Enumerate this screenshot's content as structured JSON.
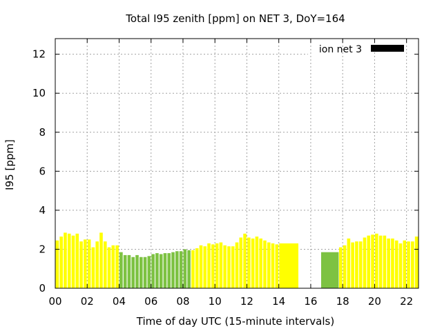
{
  "chart_data": {
    "type": "bar",
    "title": "Total I95 zenith [ppm] on NET 3, DoY=164",
    "xlabel": "Time of day UTC (15-minute intervals)",
    "ylabel": "I95 [ppm]",
    "xlim": [
      0,
      22.75
    ],
    "ylim": [
      0,
      12.8
    ],
    "x_ticks": [
      0,
      2,
      4,
      6,
      8,
      10,
      12,
      14,
      16,
      18,
      20,
      22
    ],
    "x_tick_labels": [
      "00",
      "02",
      "04",
      "06",
      "08",
      "10",
      "12",
      "14",
      "16",
      "18",
      "20",
      "22"
    ],
    "y_ticks": [
      0,
      2,
      4,
      6,
      8,
      10,
      12
    ],
    "y_tick_labels": [
      "0",
      "2",
      "4",
      "6",
      "8",
      "10",
      "12"
    ],
    "grid": true,
    "legend": {
      "label": "ion net 3",
      "position": "top-right",
      "color": "#000000"
    },
    "colors": {
      "yellow": "#ffff00",
      "green": "#7dc242"
    },
    "bar_width_hours": 0.2,
    "series": [
      {
        "values": [
          {
            "x": 0.125,
            "y": 2.45,
            "c": "yellow"
          },
          {
            "x": 0.375,
            "y": 2.65,
            "c": "yellow"
          },
          {
            "x": 0.625,
            "y": 2.85,
            "c": "yellow"
          },
          {
            "x": 0.875,
            "y": 2.8,
            "c": "yellow"
          },
          {
            "x": 1.125,
            "y": 2.7,
            "c": "yellow"
          },
          {
            "x": 1.375,
            "y": 2.8,
            "c": "yellow"
          },
          {
            "x": 1.625,
            "y": 2.4,
            "c": "yellow"
          },
          {
            "x": 1.875,
            "y": 2.5,
            "c": "yellow"
          },
          {
            "x": 2.125,
            "y": 2.5,
            "c": "yellow"
          },
          {
            "x": 2.375,
            "y": 2.1,
            "c": "yellow"
          },
          {
            "x": 2.625,
            "y": 2.4,
            "c": "yellow"
          },
          {
            "x": 2.875,
            "y": 2.85,
            "c": "yellow"
          },
          {
            "x": 3.125,
            "y": 2.4,
            "c": "yellow"
          },
          {
            "x": 3.375,
            "y": 2.1,
            "c": "yellow"
          },
          {
            "x": 3.625,
            "y": 2.2,
            "c": "yellow"
          },
          {
            "x": 3.875,
            "y": 2.2,
            "c": "yellow"
          },
          {
            "x": 4.125,
            "y": 1.85,
            "c": "green"
          },
          {
            "x": 4.375,
            "y": 1.7,
            "c": "green"
          },
          {
            "x": 4.625,
            "y": 1.7,
            "c": "green"
          },
          {
            "x": 4.875,
            "y": 1.6,
            "c": "green"
          },
          {
            "x": 5.125,
            "y": 1.7,
            "c": "green"
          },
          {
            "x": 5.375,
            "y": 1.6,
            "c": "green"
          },
          {
            "x": 5.625,
            "y": 1.6,
            "c": "green"
          },
          {
            "x": 5.875,
            "y": 1.65,
            "c": "green"
          },
          {
            "x": 6.125,
            "y": 1.75,
            "c": "green"
          },
          {
            "x": 6.375,
            "y": 1.8,
            "c": "green"
          },
          {
            "x": 6.625,
            "y": 1.75,
            "c": "green"
          },
          {
            "x": 6.875,
            "y": 1.8,
            "c": "green"
          },
          {
            "x": 7.125,
            "y": 1.8,
            "c": "green"
          },
          {
            "x": 7.375,
            "y": 1.85,
            "c": "green"
          },
          {
            "x": 7.625,
            "y": 1.9,
            "c": "green"
          },
          {
            "x": 7.875,
            "y": 1.9,
            "c": "green"
          },
          {
            "x": 8.125,
            "y": 2.0,
            "c": "green"
          },
          {
            "x": 8.375,
            "y": 1.95,
            "c": "green"
          },
          {
            "x": 8.625,
            "y": 1.95,
            "c": "yellow"
          },
          {
            "x": 8.875,
            "y": 2.05,
            "c": "yellow"
          },
          {
            "x": 9.125,
            "y": 2.2,
            "c": "yellow"
          },
          {
            "x": 9.375,
            "y": 2.15,
            "c": "yellow"
          },
          {
            "x": 9.625,
            "y": 2.3,
            "c": "yellow"
          },
          {
            "x": 9.875,
            "y": 2.25,
            "c": "yellow"
          },
          {
            "x": 10.125,
            "y": 2.3,
            "c": "yellow"
          },
          {
            "x": 10.375,
            "y": 2.35,
            "c": "yellow"
          },
          {
            "x": 10.625,
            "y": 2.2,
            "c": "yellow"
          },
          {
            "x": 10.875,
            "y": 2.15,
            "c": "yellow"
          },
          {
            "x": 11.125,
            "y": 2.15,
            "c": "yellow"
          },
          {
            "x": 11.375,
            "y": 2.35,
            "c": "yellow"
          },
          {
            "x": 11.625,
            "y": 2.6,
            "c": "yellow"
          },
          {
            "x": 11.875,
            "y": 2.8,
            "c": "yellow"
          },
          {
            "x": 12.125,
            "y": 2.6,
            "c": "yellow"
          },
          {
            "x": 12.375,
            "y": 2.55,
            "c": "yellow"
          },
          {
            "x": 12.625,
            "y": 2.65,
            "c": "yellow"
          },
          {
            "x": 12.875,
            "y": 2.55,
            "c": "yellow"
          },
          {
            "x": 13.125,
            "y": 2.45,
            "c": "yellow"
          },
          {
            "x": 13.375,
            "y": 2.35,
            "c": "yellow"
          },
          {
            "x": 13.625,
            "y": 2.3,
            "c": "yellow"
          },
          {
            "x": 13.875,
            "y": 2.25,
            "c": "yellow"
          },
          {
            "x": 14.125,
            "y": 2.3,
            "c": "yellow"
          },
          {
            "x": 14.7,
            "y": 2.3,
            "c": "yellow",
            "w": 1.05
          },
          {
            "x": 17.2,
            "y": 1.85,
            "c": "green",
            "w": 1.1
          },
          {
            "x": 17.875,
            "y": 2.1,
            "c": "yellow"
          },
          {
            "x": 18.125,
            "y": 2.2,
            "c": "yellow"
          },
          {
            "x": 18.375,
            "y": 2.55,
            "c": "yellow"
          },
          {
            "x": 18.625,
            "y": 2.35,
            "c": "yellow"
          },
          {
            "x": 18.875,
            "y": 2.4,
            "c": "yellow"
          },
          {
            "x": 19.125,
            "y": 2.4,
            "c": "yellow"
          },
          {
            "x": 19.375,
            "y": 2.6,
            "c": "yellow"
          },
          {
            "x": 19.625,
            "y": 2.7,
            "c": "yellow"
          },
          {
            "x": 19.875,
            "y": 2.75,
            "c": "yellow"
          },
          {
            "x": 20.125,
            "y": 2.8,
            "c": "yellow"
          },
          {
            "x": 20.375,
            "y": 2.7,
            "c": "yellow"
          },
          {
            "x": 20.625,
            "y": 2.7,
            "c": "yellow"
          },
          {
            "x": 20.875,
            "y": 2.55,
            "c": "yellow"
          },
          {
            "x": 21.125,
            "y": 2.55,
            "c": "yellow"
          },
          {
            "x": 21.375,
            "y": 2.45,
            "c": "yellow"
          },
          {
            "x": 21.625,
            "y": 2.3,
            "c": "yellow"
          },
          {
            "x": 21.875,
            "y": 2.45,
            "c": "yellow"
          },
          {
            "x": 22.125,
            "y": 2.4,
            "c": "yellow"
          },
          {
            "x": 22.375,
            "y": 2.4,
            "c": "yellow"
          },
          {
            "x": 22.625,
            "y": 2.65,
            "c": "yellow"
          }
        ]
      }
    ]
  }
}
